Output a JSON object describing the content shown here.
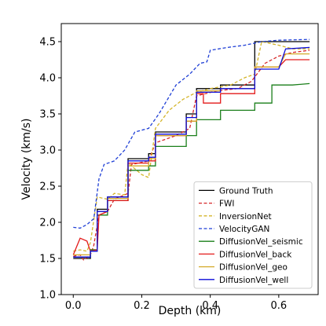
{
  "chart_data": {
    "type": "line",
    "title": "",
    "xlabel": "Depth (km)",
    "ylabel": "Velocity (km/s)",
    "xlim": [
      -0.035,
      0.715
    ],
    "ylim": [
      1.0,
      4.75
    ],
    "xticks": [
      0.0,
      0.2,
      0.4,
      0.6
    ],
    "xtick_labels": [
      "0.0",
      "0.2",
      "0.4",
      "0.6"
    ],
    "yticks": [
      1.0,
      1.5,
      2.0,
      2.5,
      3.0,
      3.5,
      4.0,
      4.5
    ],
    "ytick_labels": [
      "1.0",
      "1.5",
      "2.0",
      "2.5",
      "3.0",
      "3.5",
      "4.0",
      "4.5"
    ],
    "grid": false,
    "legend_position": "lower-right",
    "series": [
      {
        "name": "Ground Truth",
        "color": "#000000",
        "dash": "solid",
        "points": [
          [
            0.0,
            1.5
          ],
          [
            0.05,
            1.5
          ],
          [
            0.05,
            1.62
          ],
          [
            0.07,
            1.62
          ],
          [
            0.07,
            2.18
          ],
          [
            0.1,
            2.18
          ],
          [
            0.1,
            2.35
          ],
          [
            0.16,
            2.35
          ],
          [
            0.16,
            2.88
          ],
          [
            0.22,
            2.88
          ],
          [
            0.22,
            2.95
          ],
          [
            0.24,
            2.95
          ],
          [
            0.24,
            3.25
          ],
          [
            0.33,
            3.25
          ],
          [
            0.33,
            3.5
          ],
          [
            0.36,
            3.5
          ],
          [
            0.36,
            3.85
          ],
          [
            0.43,
            3.85
          ],
          [
            0.43,
            3.9
          ],
          [
            0.53,
            3.9
          ],
          [
            0.53,
            4.5
          ],
          [
            0.69,
            4.5
          ]
        ]
      },
      {
        "name": "FWI",
        "color": "#d62728",
        "dash": "dashed",
        "points": [
          [
            0.0,
            1.53
          ],
          [
            0.02,
            1.55
          ],
          [
            0.03,
            1.48
          ],
          [
            0.05,
            1.55
          ],
          [
            0.06,
            1.68
          ],
          [
            0.075,
            2.1
          ],
          [
            0.1,
            2.15
          ],
          [
            0.12,
            2.32
          ],
          [
            0.16,
            2.4
          ],
          [
            0.17,
            2.8
          ],
          [
            0.22,
            2.85
          ],
          [
            0.24,
            3.1
          ],
          [
            0.3,
            3.2
          ],
          [
            0.34,
            3.3
          ],
          [
            0.36,
            3.75
          ],
          [
            0.42,
            3.82
          ],
          [
            0.48,
            3.85
          ],
          [
            0.52,
            3.95
          ],
          [
            0.56,
            4.2
          ],
          [
            0.6,
            4.3
          ],
          [
            0.64,
            4.35
          ],
          [
            0.69,
            4.38
          ]
        ]
      },
      {
        "name": "InversionNet",
        "color": "#d4b52a",
        "dash": "dashed",
        "points": [
          [
            0.0,
            1.6
          ],
          [
            0.02,
            1.62
          ],
          [
            0.04,
            1.6
          ],
          [
            0.05,
            1.72
          ],
          [
            0.07,
            2.35
          ],
          [
            0.1,
            2.32
          ],
          [
            0.12,
            2.4
          ],
          [
            0.15,
            2.38
          ],
          [
            0.16,
            2.82
          ],
          [
            0.2,
            2.66
          ],
          [
            0.22,
            2.62
          ],
          [
            0.24,
            3.3
          ],
          [
            0.28,
            3.55
          ],
          [
            0.32,
            3.7
          ],
          [
            0.36,
            3.8
          ],
          [
            0.4,
            3.85
          ],
          [
            0.46,
            3.9
          ],
          [
            0.5,
            4.0
          ],
          [
            0.53,
            4.05
          ],
          [
            0.55,
            4.5
          ],
          [
            0.6,
            4.45
          ],
          [
            0.64,
            4.4
          ],
          [
            0.69,
            4.4
          ]
        ]
      },
      {
        "name": "VelocityGAN",
        "color": "#1f3fd6",
        "dash": "dashed",
        "points": [
          [
            0.0,
            1.93
          ],
          [
            0.02,
            1.92
          ],
          [
            0.04,
            1.97
          ],
          [
            0.06,
            2.05
          ],
          [
            0.075,
            2.6
          ],
          [
            0.09,
            2.8
          ],
          [
            0.12,
            2.85
          ],
          [
            0.15,
            3.0
          ],
          [
            0.18,
            3.25
          ],
          [
            0.22,
            3.3
          ],
          [
            0.25,
            3.5
          ],
          [
            0.3,
            3.9
          ],
          [
            0.34,
            4.05
          ],
          [
            0.37,
            4.2
          ],
          [
            0.39,
            4.22
          ],
          [
            0.4,
            4.38
          ],
          [
            0.45,
            4.42
          ],
          [
            0.5,
            4.45
          ],
          [
            0.55,
            4.5
          ],
          [
            0.6,
            4.52
          ],
          [
            0.69,
            4.53
          ]
        ]
      },
      {
        "name": "DiffusionVel_seismic",
        "color": "#1a7f1a",
        "dash": "solid",
        "points": [
          [
            0.0,
            1.52
          ],
          [
            0.05,
            1.52
          ],
          [
            0.05,
            1.62
          ],
          [
            0.07,
            1.62
          ],
          [
            0.07,
            2.1
          ],
          [
            0.1,
            2.1
          ],
          [
            0.1,
            2.3
          ],
          [
            0.16,
            2.3
          ],
          [
            0.16,
            2.72
          ],
          [
            0.22,
            2.72
          ],
          [
            0.22,
            2.78
          ],
          [
            0.24,
            2.78
          ],
          [
            0.24,
            3.05
          ],
          [
            0.33,
            3.05
          ],
          [
            0.33,
            3.2
          ],
          [
            0.36,
            3.2
          ],
          [
            0.36,
            3.42
          ],
          [
            0.43,
            3.42
          ],
          [
            0.43,
            3.55
          ],
          [
            0.53,
            3.55
          ],
          [
            0.53,
            3.65
          ],
          [
            0.58,
            3.65
          ],
          [
            0.58,
            3.9
          ],
          [
            0.64,
            3.9
          ],
          [
            0.69,
            3.92
          ]
        ]
      },
      {
        "name": "DiffusionVel_back",
        "color": "#e31a1a",
        "dash": "solid",
        "points": [
          [
            0.0,
            1.55
          ],
          [
            0.02,
            1.78
          ],
          [
            0.04,
            1.74
          ],
          [
            0.05,
            1.6
          ],
          [
            0.07,
            1.62
          ],
          [
            0.075,
            2.1
          ],
          [
            0.1,
            2.15
          ],
          [
            0.1,
            2.3
          ],
          [
            0.16,
            2.3
          ],
          [
            0.16,
            2.82
          ],
          [
            0.22,
            2.82
          ],
          [
            0.22,
            2.85
          ],
          [
            0.24,
            2.85
          ],
          [
            0.24,
            3.2
          ],
          [
            0.33,
            3.2
          ],
          [
            0.33,
            3.4
          ],
          [
            0.36,
            3.4
          ],
          [
            0.36,
            3.78
          ],
          [
            0.38,
            3.78
          ],
          [
            0.38,
            3.65
          ],
          [
            0.43,
            3.65
          ],
          [
            0.43,
            3.78
          ],
          [
            0.53,
            3.78
          ],
          [
            0.53,
            4.15
          ],
          [
            0.6,
            4.15
          ],
          [
            0.62,
            4.25
          ],
          [
            0.69,
            4.25
          ]
        ]
      },
      {
        "name": "DiffusionVel_geo",
        "color": "#d4a92a",
        "dash": "solid",
        "points": [
          [
            0.0,
            1.55
          ],
          [
            0.05,
            1.55
          ],
          [
            0.05,
            1.6
          ],
          [
            0.07,
            1.6
          ],
          [
            0.07,
            2.15
          ],
          [
            0.1,
            2.15
          ],
          [
            0.1,
            2.33
          ],
          [
            0.16,
            2.33
          ],
          [
            0.16,
            2.78
          ],
          [
            0.22,
            2.78
          ],
          [
            0.22,
            2.88
          ],
          [
            0.24,
            2.88
          ],
          [
            0.24,
            3.2
          ],
          [
            0.33,
            3.2
          ],
          [
            0.33,
            3.4
          ],
          [
            0.36,
            3.4
          ],
          [
            0.36,
            3.82
          ],
          [
            0.43,
            3.82
          ],
          [
            0.43,
            3.85
          ],
          [
            0.53,
            3.85
          ],
          [
            0.53,
            4.15
          ],
          [
            0.6,
            4.15
          ],
          [
            0.62,
            4.33
          ],
          [
            0.69,
            4.33
          ]
        ]
      },
      {
        "name": "DiffusionVel_well",
        "color": "#0a0ad8",
        "dash": "solid",
        "points": [
          [
            0.0,
            1.52
          ],
          [
            0.05,
            1.52
          ],
          [
            0.05,
            1.6
          ],
          [
            0.07,
            1.6
          ],
          [
            0.07,
            2.15
          ],
          [
            0.1,
            2.15
          ],
          [
            0.1,
            2.35
          ],
          [
            0.16,
            2.35
          ],
          [
            0.16,
            2.85
          ],
          [
            0.22,
            2.85
          ],
          [
            0.22,
            2.9
          ],
          [
            0.24,
            2.9
          ],
          [
            0.24,
            3.22
          ],
          [
            0.33,
            3.22
          ],
          [
            0.33,
            3.45
          ],
          [
            0.36,
            3.45
          ],
          [
            0.36,
            3.8
          ],
          [
            0.43,
            3.8
          ],
          [
            0.43,
            3.85
          ],
          [
            0.53,
            3.85
          ],
          [
            0.53,
            4.12
          ],
          [
            0.6,
            4.12
          ],
          [
            0.62,
            4.4
          ],
          [
            0.69,
            4.42
          ]
        ]
      }
    ]
  }
}
